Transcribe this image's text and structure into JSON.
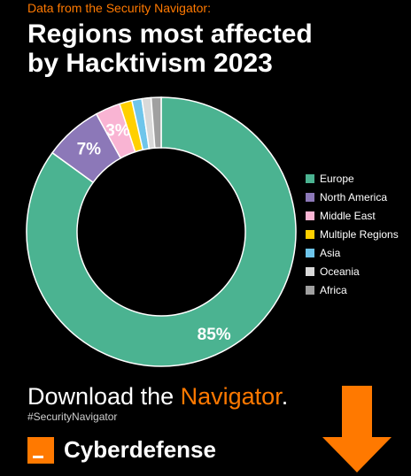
{
  "header": {
    "source": "Data from the Security Navigator:",
    "title_line1": "Regions most affected",
    "title_line2": "by Hacktivism 2023"
  },
  "chart_data": {
    "type": "pie",
    "donut": true,
    "title": "Regions most affected by Hacktivism 2023",
    "legend_position": "right",
    "start_angle": "12 o'clock, clockwise",
    "labels": [
      "Europe",
      "North America",
      "Middle East",
      "Multiple Regions",
      "Asia",
      "Oceania",
      "Africa"
    ],
    "values": [
      85,
      7,
      3,
      1.5,
      1.2,
      1.1,
      1.2
    ],
    "colors": [
      "#4bb391",
      "#8c78b8",
      "#f9b4d3",
      "#ffd000",
      "#6ec5eb",
      "#d9d9d9",
      "#a0a0a0"
    ],
    "data_labels": [
      "85%",
      "7%",
      "3%",
      "",
      "",
      "",
      ""
    ]
  },
  "cta": {
    "prefix": "Download the ",
    "highlight": "Navigator",
    "suffix": "."
  },
  "hashtag": "#SecurityNavigator",
  "brand": {
    "name": "Cyberdefense",
    "color": "#ff7900"
  },
  "icons": {
    "logo": "orange-square-logo",
    "arrow": "arrow-down-icon"
  }
}
